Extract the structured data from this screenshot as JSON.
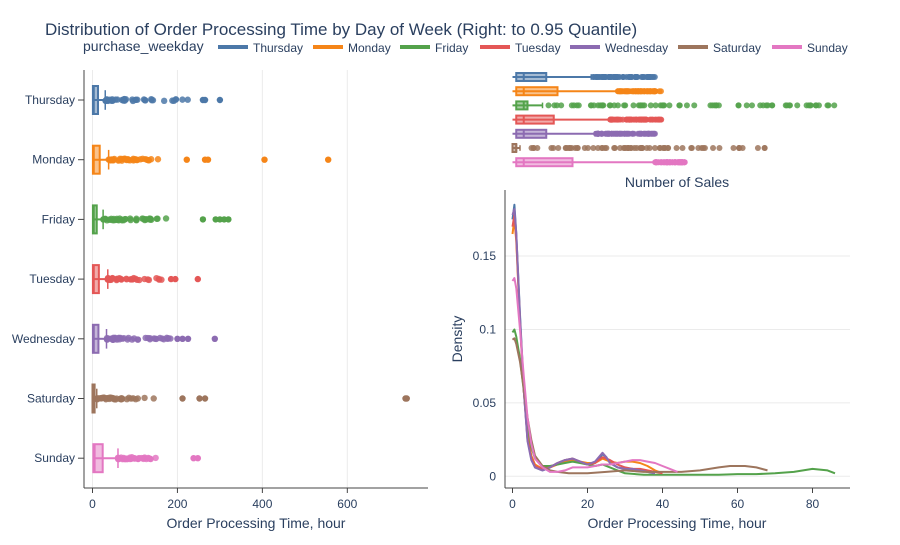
{
  "title": "Distribution of Order Processing Time by Day of Week (Right: to 0.95 Quantile)",
  "legend": {
    "title": "purchase_weekday",
    "items": [
      {
        "label": "Thursday",
        "color": "#4c78a8"
      },
      {
        "label": "Monday",
        "color": "#f58518"
      },
      {
        "label": "Friday",
        "color": "#54a24b"
      },
      {
        "label": "Tuesday",
        "color": "#e45756"
      },
      {
        "label": "Wednesday",
        "color": "#8c6bb1"
      },
      {
        "label": "Saturday",
        "color": "#9d755d"
      },
      {
        "label": "Sunday",
        "color": "#e377c2"
      }
    ]
  },
  "chart_data": [
    {
      "type": "box",
      "orientation": "horizontal",
      "title": "",
      "xlabel": "Order Processing Time, hour",
      "ylabel": "",
      "xlim": [
        -20,
        790
      ],
      "xticks": [
        0,
        200,
        400,
        600
      ],
      "categories": [
        "Thursday",
        "Monday",
        "Friday",
        "Tuesday",
        "Wednesday",
        "Saturday",
        "Sunday"
      ],
      "series": [
        {
          "name": "Thursday",
          "q1": 1,
          "median": 3,
          "q3": 13,
          "whisker_low": 0,
          "whisker_high": 30,
          "outlier_range": [
            30,
            225
          ],
          "outliers": [
            260,
            265,
            300
          ]
        },
        {
          "name": "Monday",
          "q1": 1,
          "median": 3,
          "q3": 17,
          "whisker_low": 0,
          "whisker_high": 38,
          "outlier_range": [
            38,
            170
          ],
          "outliers": [
            222,
            265,
            272,
            405,
            555
          ]
        },
        {
          "name": "Friday",
          "q1": 1,
          "median": 3,
          "q3": 10,
          "whisker_low": 0,
          "whisker_high": 25,
          "outlier_range": [
            25,
            180
          ],
          "outliers": [
            260,
            290,
            300,
            310,
            320
          ]
        },
        {
          "name": "Tuesday",
          "q1": 1,
          "median": 3,
          "q3": 15,
          "whisker_low": 0,
          "whisker_high": 36,
          "outlier_range": [
            36,
            170
          ],
          "outliers": [
            185,
            195,
            248
          ]
        },
        {
          "name": "Wednesday",
          "q1": 1,
          "median": 3,
          "q3": 14,
          "whisker_low": 0,
          "whisker_high": 33,
          "outlier_range": [
            33,
            190
          ],
          "outliers": [
            200,
            212,
            225,
            288
          ]
        },
        {
          "name": "Saturday",
          "q1": 0,
          "median": 1,
          "q3": 5,
          "whisker_low": 0,
          "whisker_high": 10,
          "outlier_range": [
            10,
            150
          ],
          "outliers": [
            212,
            252,
            265,
            737,
            740
          ]
        },
        {
          "name": "Sunday",
          "q1": 2,
          "median": 5,
          "q3": 24,
          "whisker_low": 0,
          "whisker_high": 60,
          "outlier_range": [
            60,
            150
          ],
          "outliers": [
            238,
            248
          ]
        }
      ]
    },
    {
      "type": "box",
      "orientation": "horizontal",
      "title": "Number of Sales",
      "xlim": [
        -2,
        90
      ],
      "categories": [
        "Thursday",
        "Monday",
        "Friday",
        "Tuesday",
        "Wednesday",
        "Saturday",
        "Sunday"
      ],
      "series": [
        {
          "name": "Thursday",
          "q1": 1,
          "median": 3,
          "q3": 9,
          "whisker_low": 0,
          "whisker_high": 21,
          "outlier_range": [
            21,
            38
          ],
          "outliers": []
        },
        {
          "name": "Monday",
          "q1": 1,
          "median": 3,
          "q3": 12,
          "whisker_low": 0,
          "whisker_high": 28,
          "outlier_range": [
            28,
            40
          ],
          "outliers": []
        },
        {
          "name": "Friday",
          "q1": 1,
          "median": 3,
          "q3": 4,
          "whisker_low": 0,
          "whisker_high": 8,
          "outlier_range": [
            8,
            88
          ],
          "outliers": []
        },
        {
          "name": "Tuesday",
          "q1": 1,
          "median": 3,
          "q3": 11,
          "whisker_low": 0,
          "whisker_high": 26,
          "outlier_range": [
            26,
            40
          ],
          "outliers": []
        },
        {
          "name": "Wednesday",
          "q1": 1,
          "median": 3,
          "q3": 9,
          "whisker_low": 0,
          "whisker_high": 22,
          "outlier_range": [
            22,
            38
          ],
          "outliers": []
        },
        {
          "name": "Saturday",
          "q1": 0,
          "median": 1,
          "q3": 1,
          "whisker_low": 0,
          "whisker_high": 2,
          "outlier_range": [
            2,
            69
          ],
          "outliers": []
        },
        {
          "name": "Sunday",
          "q1": 1,
          "median": 3,
          "q3": 16,
          "whisker_low": 0,
          "whisker_high": 38,
          "outlier_range": [
            38,
            46
          ],
          "outliers": []
        }
      ]
    },
    {
      "type": "line",
      "title": "",
      "xlabel": "Order Processing Time, hour",
      "ylabel": "Density",
      "xlim": [
        -2,
        90
      ],
      "ylim": [
        -0.008,
        0.195
      ],
      "xticks": [
        0,
        20,
        40,
        60,
        80
      ],
      "yticks": [
        0,
        0.05,
        0.1,
        0.15
      ],
      "ytick_labels": [
        "0",
        "0.05",
        "0.1",
        "0.15"
      ],
      "series": [
        {
          "name": "Thursday",
          "x": [
            0,
            0.5,
            1,
            2,
            3,
            4,
            5,
            6,
            8,
            10,
            12,
            14,
            16,
            18,
            20,
            22,
            23,
            24,
            25,
            26,
            28,
            30,
            32,
            34,
            36,
            38
          ],
          "y": [
            0.175,
            0.185,
            0.165,
            0.11,
            0.06,
            0.025,
            0.012,
            0.006,
            0.004,
            0.006,
            0.009,
            0.011,
            0.012,
            0.01,
            0.008,
            0.009,
            0.012,
            0.015,
            0.013,
            0.009,
            0.006,
            0.005,
            0.005,
            0.004,
            0.003,
            0.002
          ]
        },
        {
          "name": "Monday",
          "x": [
            0,
            0.5,
            1,
            2,
            3,
            4,
            5,
            6,
            8,
            10,
            12,
            14,
            16,
            18,
            20,
            22,
            24,
            26,
            28,
            30,
            32,
            34,
            36,
            38,
            40
          ],
          "y": [
            0.165,
            0.175,
            0.16,
            0.105,
            0.058,
            0.028,
            0.014,
            0.008,
            0.005,
            0.006,
            0.008,
            0.01,
            0.011,
            0.01,
            0.009,
            0.009,
            0.012,
            0.01,
            0.009,
            0.01,
            0.01,
            0.009,
            0.007,
            0.004,
            0.002
          ]
        },
        {
          "name": "Friday",
          "x": [
            0,
            0.5,
            1,
            2,
            3,
            4,
            5,
            6,
            8,
            10,
            12,
            14,
            16,
            18,
            20,
            22,
            24,
            26,
            28,
            30,
            35,
            40,
            45,
            50,
            55,
            60,
            65,
            70,
            75,
            80,
            84,
            86
          ],
          "y": [
            0.098,
            0.1,
            0.095,
            0.08,
            0.058,
            0.035,
            0.02,
            0.012,
            0.007,
            0.007,
            0.008,
            0.009,
            0.01,
            0.009,
            0.008,
            0.007,
            0.008,
            0.006,
            0.004,
            0.002,
            0.001,
            0.001,
            0.001,
            0.001,
            0.001,
            0.0015,
            0.0015,
            0.002,
            0.003,
            0.005,
            0.004,
            0.002
          ]
        },
        {
          "name": "Tuesday",
          "x": [
            0,
            0.5,
            1,
            2,
            3,
            4,
            5,
            6,
            8,
            10,
            12,
            14,
            16,
            18,
            20,
            22,
            24,
            26,
            28,
            30,
            32,
            34,
            36,
            38,
            40
          ],
          "y": [
            0.17,
            0.178,
            0.162,
            0.105,
            0.058,
            0.026,
            0.013,
            0.007,
            0.005,
            0.006,
            0.009,
            0.011,
            0.012,
            0.01,
            0.008,
            0.009,
            0.013,
            0.011,
            0.008,
            0.006,
            0.005,
            0.005,
            0.004,
            0.003,
            0.002
          ]
        },
        {
          "name": "Wednesday",
          "x": [
            0,
            0.5,
            1,
            2,
            3,
            4,
            5,
            6,
            8,
            10,
            12,
            14,
            16,
            18,
            20,
            22,
            23,
            24,
            25,
            26,
            28,
            30,
            32,
            34,
            36,
            38
          ],
          "y": [
            0.178,
            0.182,
            0.165,
            0.108,
            0.058,
            0.024,
            0.011,
            0.006,
            0.004,
            0.006,
            0.009,
            0.011,
            0.012,
            0.01,
            0.008,
            0.01,
            0.013,
            0.016,
            0.013,
            0.009,
            0.006,
            0.005,
            0.005,
            0.004,
            0.003,
            0.002
          ]
        },
        {
          "name": "Saturday",
          "x": [
            0,
            0.5,
            1,
            2,
            3,
            4,
            5,
            6,
            8,
            10,
            12,
            15,
            20,
            25,
            30,
            35,
            40,
            45,
            50,
            55,
            58,
            62,
            65,
            68
          ],
          "y": [
            0.093,
            0.094,
            0.09,
            0.078,
            0.06,
            0.04,
            0.025,
            0.014,
            0.007,
            0.004,
            0.003,
            0.002,
            0.002,
            0.003,
            0.004,
            0.003,
            0.003,
            0.003,
            0.004,
            0.006,
            0.007,
            0.007,
            0.006,
            0.004
          ]
        },
        {
          "name": "Sunday",
          "x": [
            0,
            0.5,
            1,
            2,
            3,
            4,
            5,
            6,
            8,
            10,
            12,
            14,
            16,
            18,
            20,
            22,
            24,
            26,
            28,
            30,
            32,
            34,
            36,
            38,
            40,
            42,
            44
          ],
          "y": [
            0.133,
            0.135,
            0.128,
            0.1,
            0.068,
            0.04,
            0.022,
            0.012,
            0.006,
            0.003,
            0.003,
            0.004,
            0.006,
            0.006,
            0.006,
            0.007,
            0.008,
            0.008,
            0.009,
            0.01,
            0.011,
            0.011,
            0.01,
            0.009,
            0.007,
            0.005,
            0.003
          ]
        }
      ]
    }
  ]
}
